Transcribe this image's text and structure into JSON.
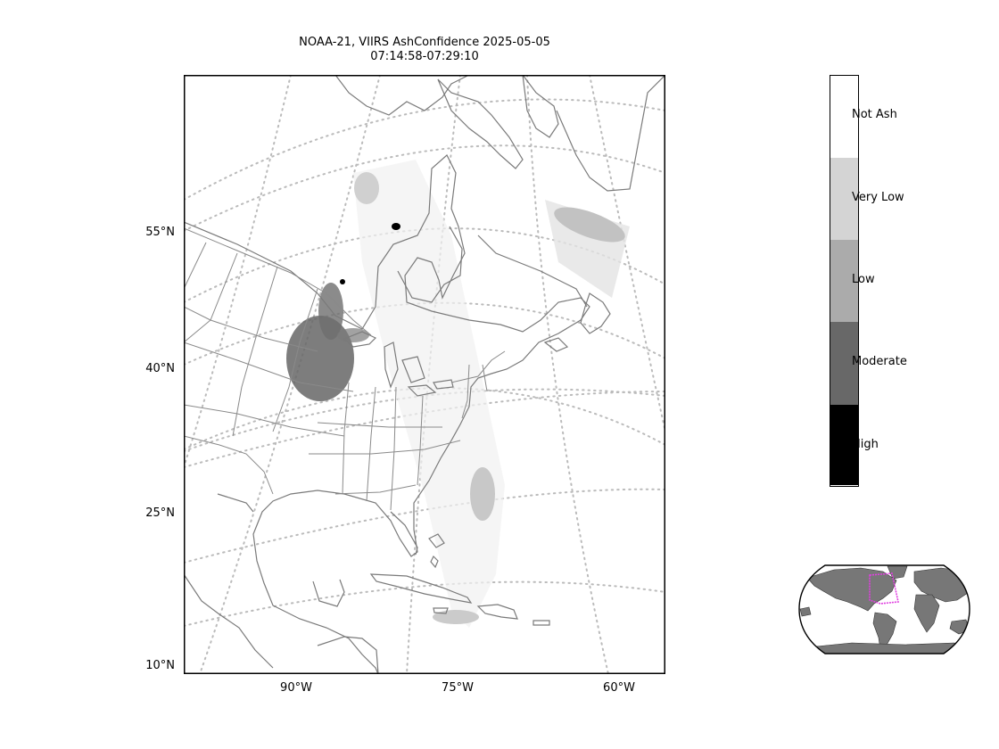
{
  "title": {
    "line1": "NOAA-21, VIIRS AshConfidence 2025-05-05",
    "line2": "07:14:58-07:29:10"
  },
  "map": {
    "lat_labels": [
      "55°N",
      "40°N",
      "25°N",
      "10°N"
    ],
    "lon_labels": [
      "90°W",
      "75°W",
      "60°W"
    ],
    "land_outline_color": "#7a7a7a",
    "graticule_color": "#bbbbbb"
  },
  "legend": {
    "categories": [
      {
        "label": "Not Ash",
        "color": "#ffffff"
      },
      {
        "label": "Very Low",
        "color": "#d4d4d4"
      },
      {
        "label": "Low",
        "color": "#ababab"
      },
      {
        "label": "Moderate",
        "color": "#686868"
      },
      {
        "label": "High",
        "color": "#000000"
      }
    ]
  },
  "inset": {
    "land_color": "#777777",
    "highlight_color": "#e040e0"
  }
}
